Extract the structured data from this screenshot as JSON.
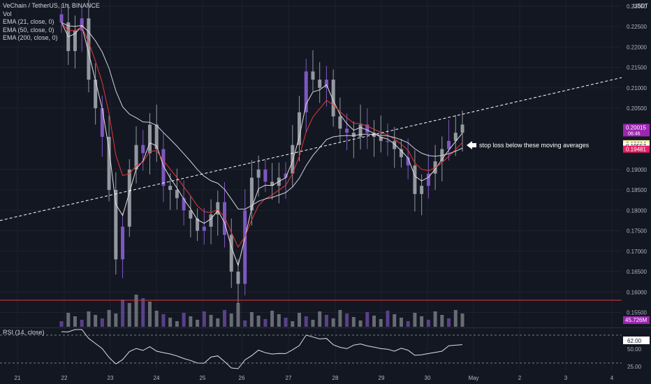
{
  "legend": {
    "symbol": "VeChain / TetherUS, 1h, BINANCE",
    "vol": "Vol",
    "ema21": "EMA (21, close, 0)",
    "ema50": "EMA (50, close, 0)",
    "ema200": "EMA (200, close, 0)"
  },
  "rsi_legend": "RSI (14, close)",
  "currency": "USDT",
  "annotation": "stop loss below these moving averages",
  "colors": {
    "background": "#131722",
    "candle": "#9598a1",
    "candle_alt": "#7e57c2",
    "ema21": "#e0e0e0",
    "ema50": "#e53935",
    "ema200": "#d1d4dc",
    "support_line": "#e53935",
    "price_label_bg": "#9c27b0"
  },
  "chart_data": [
    {
      "type": "candlestick",
      "title": "VeChain / TetherUS, 1h, BINANCE",
      "x_tick_labels": [
        "21",
        "22",
        "23",
        "24",
        "25",
        "26",
        "27",
        "28",
        "29",
        "30",
        "May",
        "2",
        "3",
        "4"
      ],
      "y_tick_labels": [
        "0.23000",
        "0.22500",
        "0.22000",
        "0.21500",
        "0.21000",
        "0.20500",
        "0.19000",
        "0.18500",
        "0.18000",
        "0.17500",
        "0.17000",
        "0.16500",
        "0.16000",
        "0.15500"
      ],
      "ylim": [
        0.1515,
        0.2315
      ],
      "price_labels": [
        {
          "value": "0.20015",
          "sub": "06:46",
          "price": 0.20015,
          "color": "#9c27b0",
          "text_color": "#ffffff"
        },
        {
          "value": "0.19614",
          "price": 0.19614,
          "color": "#fff59d",
          "text_color": "#131722"
        },
        {
          "value": "0.19557",
          "price": 0.19557,
          "color": "#ffffff",
          "text_color": "#131722"
        },
        {
          "value": "0.19481",
          "price": 0.19481,
          "color": "#e91e63",
          "text_color": "#ffffff"
        }
      ],
      "volume_label": "45.726M",
      "support_level": 0.158,
      "trendline": [
        {
          "x": "20",
          "y": 0.1775
        },
        {
          "x": "May 1",
          "y": 0.208
        }
      ],
      "close_series_approx": [
        0.226,
        0.219,
        0.224,
        0.227,
        0.212,
        0.205,
        0.198,
        0.185,
        0.168,
        0.176,
        0.19,
        0.196,
        0.194,
        0.201,
        0.195,
        0.186,
        0.185,
        0.183,
        0.18,
        0.178,
        0.175,
        0.176,
        0.179,
        0.182,
        0.174,
        0.165,
        0.162,
        0.18,
        0.188,
        0.19,
        0.187,
        0.186,
        0.188,
        0.189,
        0.196,
        0.204,
        0.214,
        0.212,
        0.21,
        0.212,
        0.203,
        0.2,
        0.199,
        0.198,
        0.201,
        0.199,
        0.198,
        0.197,
        0.197,
        0.195,
        0.193,
        0.191,
        0.184,
        0.186,
        0.189,
        0.192,
        0.195,
        0.197,
        0.199,
        0.201
      ],
      "emas": [
        {
          "name": "EMA (21, close, 0)"
        },
        {
          "name": "EMA (50, close, 0)"
        },
        {
          "name": "EMA (200, close, 0)"
        }
      ]
    },
    {
      "type": "line",
      "title": "RSI (14, close)",
      "y_tick_labels": [
        "62.00",
        "50.00",
        "25.00"
      ],
      "ylim": [
        20,
        80
      ],
      "current_value": 62.0,
      "bands": [
        70,
        30
      ]
    }
  ]
}
